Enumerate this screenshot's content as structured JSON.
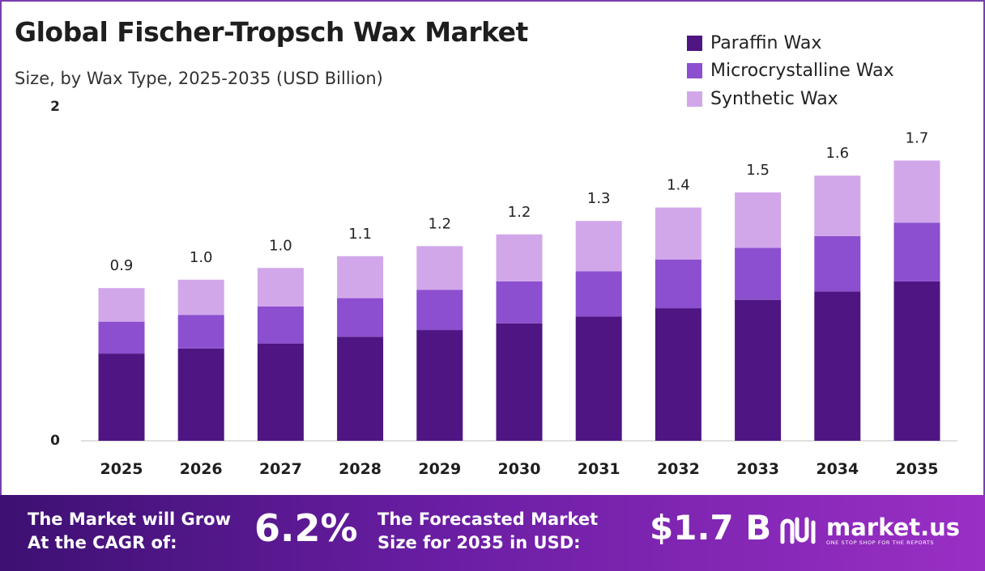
{
  "header": {
    "title": "Global Fischer-Tropsch Wax Market",
    "subtitle": "Size, by Wax Type, 2025-2035 (USD Billion)"
  },
  "colors": {
    "paraffin": "#4f1683",
    "microcrystalline": "#8c4fcf",
    "synthetic": "#d1a7ea",
    "footer_start": "#3d1072",
    "footer_end": "#9a2fc5"
  },
  "chart_data": {
    "type": "bar",
    "stacked": true,
    "title": "Global Fischer-Tropsch Wax Market",
    "subtitle": "Size, by Wax Type, 2025-2035 (USD Billion)",
    "xlabel": "",
    "ylabel": "",
    "ylim": [
      0,
      2
    ],
    "y_tick_labels": [
      "0",
      "2"
    ],
    "categories": [
      "2025",
      "2026",
      "2027",
      "2028",
      "2029",
      "2030",
      "2031",
      "2032",
      "2033",
      "2034",
      "2035"
    ],
    "series": [
      {
        "name": "Paraffin Wax",
        "color": "#4f1683",
        "values": [
          0.52,
          0.55,
          0.58,
          0.62,
          0.66,
          0.7,
          0.74,
          0.79,
          0.84,
          0.89,
          0.95
        ]
      },
      {
        "name": "Microcrystalline Wax",
        "color": "#8c4fcf",
        "values": [
          0.19,
          0.2,
          0.22,
          0.23,
          0.24,
          0.25,
          0.27,
          0.29,
          0.31,
          0.33,
          0.35
        ]
      },
      {
        "name": "Synthetic Wax",
        "color": "#d1a7ea",
        "values": [
          0.2,
          0.21,
          0.23,
          0.25,
          0.26,
          0.28,
          0.3,
          0.31,
          0.33,
          0.36,
          0.37
        ]
      }
    ],
    "totals": [
      0.91,
      0.96,
      1.03,
      1.1,
      1.16,
      1.23,
      1.31,
      1.39,
      1.48,
      1.58,
      1.67
    ],
    "total_labels": [
      "0.9",
      "1.0",
      "1.0",
      "1.1",
      "1.2",
      "1.2",
      "1.3",
      "1.4",
      "1.5",
      "1.6",
      "1.7"
    ],
    "legend_position": "top-right",
    "grid": false
  },
  "footer": {
    "cagr_text_line1": "The Market will Grow",
    "cagr_text_line2": "At the CAGR of:",
    "cagr_value": "6.2%",
    "forecast_text_line1": "The Forecasted Market",
    "forecast_text_line2": "Size for 2035 in USD:",
    "forecast_value": "$1.7 B",
    "brand_name": "market.us",
    "brand_tagline": "ONE STOP SHOP FOR THE REPORTS"
  }
}
